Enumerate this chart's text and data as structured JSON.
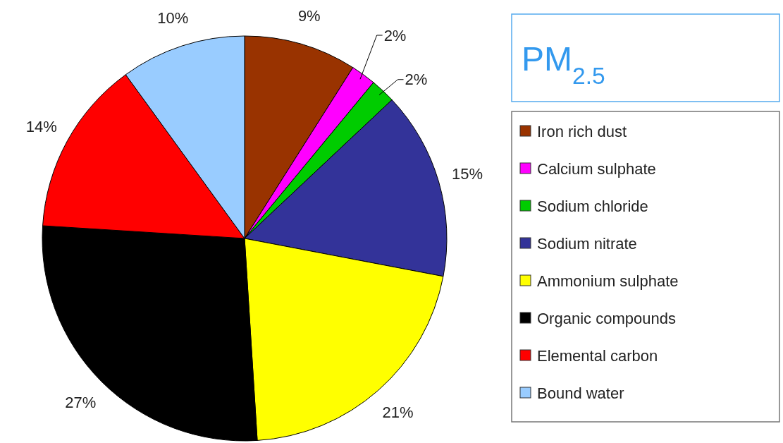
{
  "chart_data": {
    "type": "pie",
    "title": "PM$_{2.5}$",
    "categories": [
      "Iron rich dust",
      "Calcium sulphate",
      "Sodium chloride",
      "Sodium nitrate",
      "Ammonium sulphate",
      "Organic compounds",
      "Elemental carbon",
      "Bound water"
    ],
    "values": [
      9,
      2,
      2,
      15,
      21,
      27,
      14,
      10
    ],
    "colors": [
      "#993300",
      "#ff00ff",
      "#00cc00",
      "#333399",
      "#ffff00",
      "#000000",
      "#ff0000",
      "#99ccff"
    ],
    "value_labels": [
      "9%",
      "2%",
      "2%",
      "15%",
      "21%",
      "27%",
      "14%",
      "10%"
    ],
    "legend": "right"
  }
}
